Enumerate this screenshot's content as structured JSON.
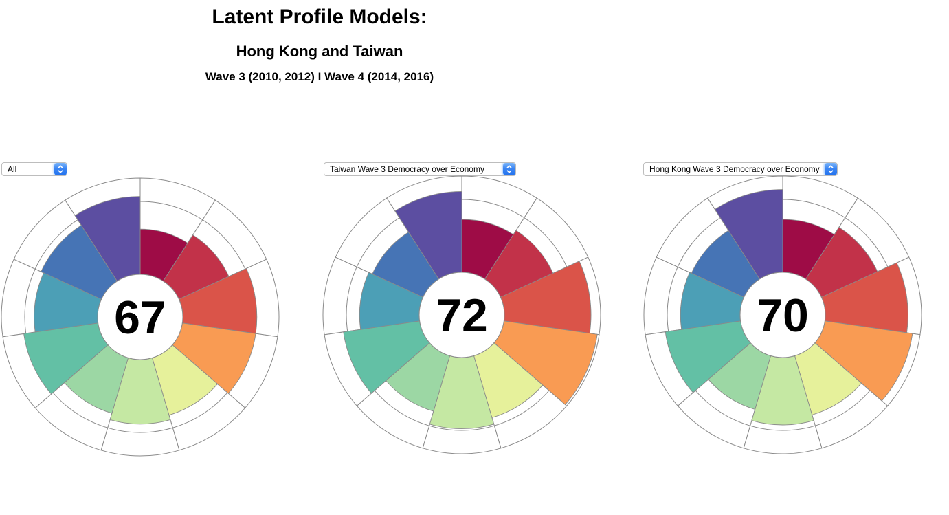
{
  "header": {
    "title": "Latent Profile Models:",
    "subtitle": "Hong Kong and Taiwan",
    "wave_line": "Wave 3 (2010, 2012) I Wave 4 (2014, 2016)"
  },
  "controls": [
    {
      "selected": "All"
    },
    {
      "selected": "Taiwan Wave 3 Democracy over Economy"
    },
    {
      "selected": "Hong Kong Wave 3 Democracy over Economy"
    }
  ],
  "chart_data": [
    {
      "type": "bar",
      "subtype": "aster-radial-polar",
      "filter_label": "All",
      "center_score": 67,
      "value_scale": [
        0,
        100
      ],
      "start": "top",
      "direction": "clockwise",
      "segment_count": 11,
      "values": [
        47,
        57,
        77,
        77,
        62,
        67,
        60,
        78,
        66,
        69,
        81
      ],
      "colors": [
        "#9E0C46",
        "#C23249",
        "#DA5449",
        "#F99B53",
        "#E6F19B",
        "#C5E8A3",
        "#9CD7A4",
        "#63C0A5",
        "#4C9FB6",
        "#4674B5",
        "#5C4EA1"
      ],
      "segment_color_names": [
        "crimson",
        "rose-red",
        "tomato",
        "orange",
        "pale-yellow",
        "pale-green",
        "light-green",
        "teal-green",
        "teal-blue",
        "steel-blue",
        "indigo"
      ]
    },
    {
      "type": "bar",
      "subtype": "aster-radial-polar",
      "filter_label": "Taiwan Wave 3 Democracy over Economy",
      "center_score": 72,
      "value_scale": [
        0,
        100
      ],
      "start": "top",
      "direction": "clockwise",
      "segment_count": 11,
      "values": [
        55,
        60,
        90,
        98,
        67,
        74,
        60,
        80,
        62,
        58,
        84
      ],
      "colors": [
        "#9E0C46",
        "#C23249",
        "#DA5449",
        "#F99B53",
        "#E6F19B",
        "#C5E8A3",
        "#9CD7A4",
        "#63C0A5",
        "#4C9FB6",
        "#4674B5",
        "#5C4EA1"
      ],
      "segment_color_names": [
        "crimson",
        "rose-red",
        "tomato",
        "orange",
        "pale-yellow",
        "pale-green",
        "light-green",
        "teal-green",
        "teal-blue",
        "steel-blue",
        "indigo"
      ]
    },
    {
      "type": "bar",
      "subtype": "aster-radial-polar",
      "filter_label": "Hong Kong Wave 3 Democracy over Economy",
      "center_score": 70,
      "value_scale": [
        0,
        100
      ],
      "start": "top",
      "direction": "clockwise",
      "segment_count": 11,
      "values": [
        55,
        64,
        86,
        92,
        64,
        70,
        58,
        79,
        62,
        60,
        86
      ],
      "colors": [
        "#9E0C46",
        "#C23249",
        "#DA5449",
        "#F99B53",
        "#E6F19B",
        "#C5E8A3",
        "#9CD7A4",
        "#63C0A5",
        "#4C9FB6",
        "#4674B5",
        "#5C4EA1"
      ],
      "segment_color_names": [
        "crimson",
        "rose-red",
        "tomato",
        "orange",
        "pale-yellow",
        "pale-green",
        "light-green",
        "teal-green",
        "teal-blue",
        "steel-blue",
        "indigo"
      ]
    }
  ],
  "style": {
    "stroke_color": "#8a8a8a",
    "track_fill": "#ffffff",
    "score_text_color": "#000000"
  }
}
